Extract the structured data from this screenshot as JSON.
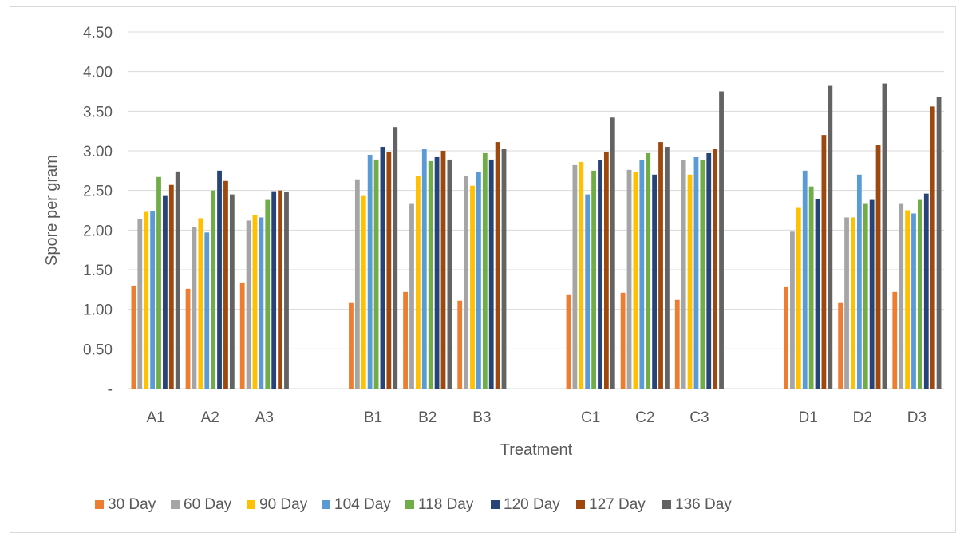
{
  "chart_data": {
    "type": "bar",
    "title": "",
    "xlabel": "Treatment",
    "ylabel": "Spore per gram",
    "ylim": [
      0,
      4.5
    ],
    "yticks": [
      "-",
      "0.50",
      "1.00",
      "1.50",
      "2.00",
      "2.50",
      "3.00",
      "3.50",
      "4.00",
      "4.50"
    ],
    "grid": true,
    "legend_position": "bottom",
    "groups": [
      {
        "name": "A",
        "categories": [
          "A1",
          "A2",
          "A3"
        ]
      },
      {
        "name": "B",
        "categories": [
          "B1",
          "B2",
          "B3"
        ]
      },
      {
        "name": "C",
        "categories": [
          "C1",
          "C2",
          "C3"
        ]
      },
      {
        "name": "D",
        "categories": [
          "D1",
          "D2",
          "D3"
        ]
      }
    ],
    "categories": [
      "A1",
      "A2",
      "A3",
      "B1",
      "B2",
      "B3",
      "C1",
      "C2",
      "C3",
      "D1",
      "D2",
      "D3"
    ],
    "series": [
      {
        "name": "30 Day",
        "color": "#ed7d31",
        "values": [
          1.3,
          1.26,
          1.33,
          1.08,
          1.22,
          1.11,
          1.18,
          1.21,
          1.12,
          1.28,
          1.08,
          1.22
        ]
      },
      {
        "name": "60 Day",
        "color": "#a5a5a5",
        "values": [
          2.14,
          2.04,
          2.12,
          2.64,
          2.33,
          2.68,
          2.82,
          2.76,
          2.88,
          1.98,
          2.16,
          2.33
        ]
      },
      {
        "name": "90 Day",
        "color": "#ffc000",
        "values": [
          2.23,
          2.15,
          2.19,
          2.43,
          2.68,
          2.56,
          2.86,
          2.73,
          2.7,
          2.28,
          2.16,
          2.25
        ]
      },
      {
        "name": "104 Day",
        "color": "#5b9bd5",
        "values": [
          2.24,
          1.97,
          2.16,
          2.95,
          3.02,
          2.73,
          2.45,
          2.88,
          2.92,
          2.75,
          2.7,
          2.21
        ]
      },
      {
        "name": "118 Day",
        "color": "#70ad47",
        "values": [
          2.67,
          2.5,
          2.38,
          2.89,
          2.87,
          2.97,
          2.75,
          2.97,
          2.88,
          2.55,
          2.33,
          2.38
        ]
      },
      {
        "name": "120 Day",
        "color": "#264478",
        "values": [
          2.43,
          2.75,
          2.49,
          3.05,
          2.92,
          2.89,
          2.88,
          2.7,
          2.97,
          2.39,
          2.38,
          2.46
        ]
      },
      {
        "name": "127 Day",
        "color": "#9e480e",
        "values": [
          2.57,
          2.62,
          2.5,
          2.98,
          3.0,
          3.11,
          2.98,
          3.11,
          3.02,
          3.2,
          3.07,
          3.56
        ]
      },
      {
        "name": "136 Day",
        "color": "#636363",
        "values": [
          2.74,
          2.45,
          2.48,
          3.3,
          2.89,
          3.02,
          3.42,
          3.05,
          3.75,
          3.82,
          3.85,
          3.68
        ]
      }
    ]
  }
}
